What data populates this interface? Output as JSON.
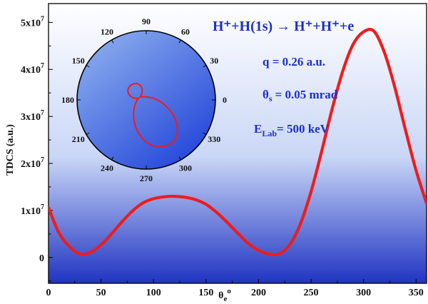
{
  "chart_data": [
    {
      "type": "line",
      "xlabel": "θ",
      "xlabel_sub": "e",
      "xlabel_sup": "o",
      "ylabel": "TDCS (a.u.)",
      "xlim": [
        0,
        360
      ],
      "ylim": [
        -5500000,
        54000000
      ],
      "x_ticks": [
        0,
        50,
        100,
        150,
        200,
        250,
        300,
        350
      ],
      "y_ticks": [
        {
          "value": 0,
          "base": "0",
          "exp": ""
        },
        {
          "value": 10000000,
          "base": "1x10",
          "exp": "7"
        },
        {
          "value": 20000000,
          "base": "2x10",
          "exp": "7"
        },
        {
          "value": 30000000,
          "base": "3x10",
          "exp": "7"
        },
        {
          "value": 40000000,
          "base": "4x10",
          "exp": "7"
        },
        {
          "value": 50000000,
          "base": "5x10",
          "exp": "7"
        }
      ],
      "line_color": "#ee1c1c",
      "background": {
        "top": "#ffffff",
        "bottom": "#1f34c2"
      },
      "series": [
        {
          "x": [
            0,
            10,
            20,
            30,
            40,
            50,
            60,
            70,
            80,
            90,
            100,
            110,
            120,
            130,
            140,
            150,
            160,
            170,
            180,
            190,
            200,
            210,
            220,
            230,
            240,
            250,
            260,
            270,
            280,
            290,
            300,
            310,
            320,
            330,
            340,
            350,
            360
          ],
          "values": [
            10600000,
            5200000,
            2300000,
            700000,
            1100000,
            2700000,
            5000000,
            7600000,
            9900000,
            11600000,
            12500000,
            12900000,
            13000000,
            12800000,
            12300000,
            11300000,
            9600000,
            7500000,
            5200000,
            3000000,
            1500000,
            700000,
            800000,
            2800000,
            7200000,
            14000000,
            22500000,
            31500000,
            39500000,
            45300000,
            48000000,
            48100000,
            43500000,
            36000000,
            27000000,
            18500000,
            11500000
          ]
        }
      ]
    },
    {
      "type": "polar",
      "angle_ticks": [
        "0",
        "30",
        "60",
        "90",
        "120",
        "150",
        "180",
        "210",
        "240",
        "270",
        "300",
        "330"
      ],
      "angle_tick_values": [
        0,
        30,
        60,
        90,
        120,
        150,
        180,
        210,
        240,
        270,
        300,
        330
      ],
      "line_color": "#ee1c1c",
      "background": {
        "top": "#8fb1ef",
        "bottom": "#1d3fd8"
      },
      "series": [
        {
          "theta": [
            0,
            10,
            20,
            30,
            40,
            50,
            60,
            70,
            80,
            90,
            100,
            110,
            120,
            130,
            140,
            150,
            160,
            170,
            180,
            190,
            200,
            210,
            220,
            230,
            240,
            250,
            260,
            270,
            280,
            290,
            300,
            310,
            320,
            330,
            340,
            350,
            360
          ],
          "r": [
            10600000,
            5200000,
            2300000,
            700000,
            1100000,
            2700000,
            5000000,
            7600000,
            9900000,
            11600000,
            12500000,
            12900000,
            13000000,
            12800000,
            12300000,
            11300000,
            9600000,
            7500000,
            5200000,
            3000000,
            1500000,
            700000,
            800000,
            2800000,
            7200000,
            14000000,
            22500000,
            31500000,
            39500000,
            45300000,
            48000000,
            48100000,
            43500000,
            36000000,
            27000000,
            18500000,
            11500000
          ]
        }
      ]
    }
  ],
  "annotations": {
    "reaction": "H⁺+H(1s) → H⁺+H⁺+e",
    "q": "q = 0.26 a.u.",
    "theta_s_symbol": "θ",
    "theta_s_sub": "s",
    "theta_s_value": "= 0.05 mrad",
    "elab_symbol": "E",
    "elab_sub": "Lab",
    "elab_value": "= 500 keV"
  }
}
